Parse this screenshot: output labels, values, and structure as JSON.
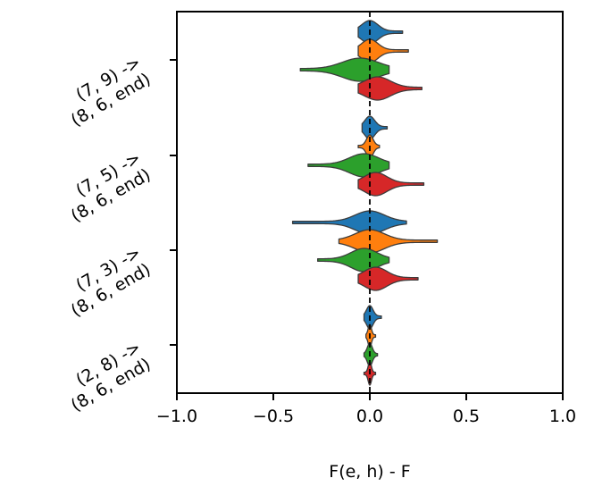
{
  "chart_data": {
    "type": "violin",
    "orientation": "horizontal",
    "xlabel": "F(e, h) - F",
    "ylabel": "",
    "xlim": [
      -1.0,
      1.0
    ],
    "x_ticks": [
      "−1.0",
      "−0.5",
      "0.0",
      "0.5",
      "1.0"
    ],
    "x_tick_values": [
      -1.0,
      -0.5,
      0.0,
      0.5,
      1.0
    ],
    "reference_line": {
      "x": 0.0,
      "style": "dashed",
      "color": "#000000"
    },
    "categories": [
      [
        "(7, 9) ->",
        "(8, 6, end)"
      ],
      [
        "(7, 5) ->",
        "(8, 6, end)"
      ],
      [
        "(7, 3) ->",
        "(8, 6, end)"
      ],
      [
        "(2, 8) ->",
        "(8, 6, end)"
      ]
    ],
    "series_colors": [
      "#1f77b4",
      "#ff7f0e",
      "#2ca02c",
      "#d62728"
    ],
    "violins": [
      [
        {
          "min": -0.06,
          "max": 0.17,
          "center": 0.0,
          "q1": -0.02,
          "q3": 0.03
        },
        {
          "min": -0.06,
          "max": 0.2,
          "center": 0.0,
          "q1": -0.02,
          "q3": 0.03
        },
        {
          "min": -0.36,
          "max": 0.1,
          "center": -0.05,
          "q1": -0.1,
          "q3": 0.01
        },
        {
          "min": -0.06,
          "max": 0.27,
          "center": 0.04,
          "q1": 0.0,
          "q3": 0.08
        }
      ],
      [
        {
          "min": -0.04,
          "max": 0.09,
          "center": 0.0,
          "q1": -0.01,
          "q3": 0.02
        },
        {
          "min": -0.06,
          "max": 0.05,
          "center": 0.0,
          "q1": -0.01,
          "q3": 0.01
        },
        {
          "min": -0.32,
          "max": 0.1,
          "center": -0.03,
          "q1": -0.08,
          "q3": 0.01
        },
        {
          "min": -0.06,
          "max": 0.28,
          "center": 0.03,
          "q1": 0.0,
          "q3": 0.07
        }
      ],
      [
        {
          "min": -0.4,
          "max": 0.19,
          "center": 0.0,
          "q1": -0.05,
          "q3": 0.04
        },
        {
          "min": -0.16,
          "max": 0.35,
          "center": 0.0,
          "q1": -0.05,
          "q3": 0.04
        },
        {
          "min": -0.27,
          "max": 0.1,
          "center": -0.03,
          "q1": -0.07,
          "q3": 0.01
        },
        {
          "min": -0.06,
          "max": 0.25,
          "center": 0.03,
          "q1": 0.0,
          "q3": 0.07
        }
      ],
      [
        {
          "min": -0.03,
          "max": 0.06,
          "center": 0.0,
          "q1": -0.01,
          "q3": 0.01
        },
        {
          "min": -0.02,
          "max": 0.03,
          "center": 0.0,
          "q1": -0.005,
          "q3": 0.005
        },
        {
          "min": -0.03,
          "max": 0.04,
          "center": 0.0,
          "q1": -0.005,
          "q3": 0.01
        },
        {
          "min": -0.03,
          "max": 0.03,
          "center": 0.0,
          "q1": -0.005,
          "q3": 0.005
        }
      ]
    ]
  }
}
